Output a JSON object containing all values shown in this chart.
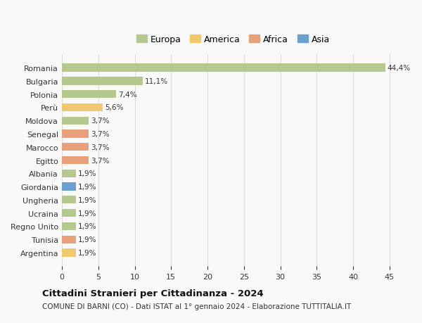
{
  "countries": [
    "Romania",
    "Bulgaria",
    "Polonia",
    "Perù",
    "Moldova",
    "Senegal",
    "Marocco",
    "Egitto",
    "Albania",
    "Giordania",
    "Ungheria",
    "Ucraina",
    "Regno Unito",
    "Tunisia",
    "Argentina"
  ],
  "values": [
    44.4,
    11.1,
    7.4,
    5.6,
    3.7,
    3.7,
    3.7,
    3.7,
    1.9,
    1.9,
    1.9,
    1.9,
    1.9,
    1.9,
    1.9
  ],
  "labels": [
    "44,4%",
    "11,1%",
    "7,4%",
    "5,6%",
    "3,7%",
    "3,7%",
    "3,7%",
    "3,7%",
    "1,9%",
    "1,9%",
    "1,9%",
    "1,9%",
    "1,9%",
    "1,9%",
    "1,9%"
  ],
  "colors": [
    "#b5c98e",
    "#b5c98e",
    "#b5c98e",
    "#f0c96e",
    "#b5c98e",
    "#e8a07a",
    "#e8a07a",
    "#e8a07a",
    "#b5c98e",
    "#6b9fcf",
    "#b5c98e",
    "#b5c98e",
    "#b5c98e",
    "#e8a07a",
    "#f0c96e"
  ],
  "legend": {
    "Europa": "#b5c98e",
    "America": "#f0c96e",
    "Africa": "#e8a07a",
    "Asia": "#6b9fcf"
  },
  "title": "Cittadini Stranieri per Cittadinanza - 2024",
  "subtitle": "COMUNE DI BARNI (CO) - Dati ISTAT al 1° gennaio 2024 - Elaborazione TUTTITALIA.IT",
  "xlim": [
    0,
    47
  ],
  "xticks": [
    0,
    5,
    10,
    15,
    20,
    25,
    30,
    35,
    40,
    45
  ],
  "background_color": "#f9f9f9",
  "grid_color": "#dddddd",
  "bar_height": 0.6
}
